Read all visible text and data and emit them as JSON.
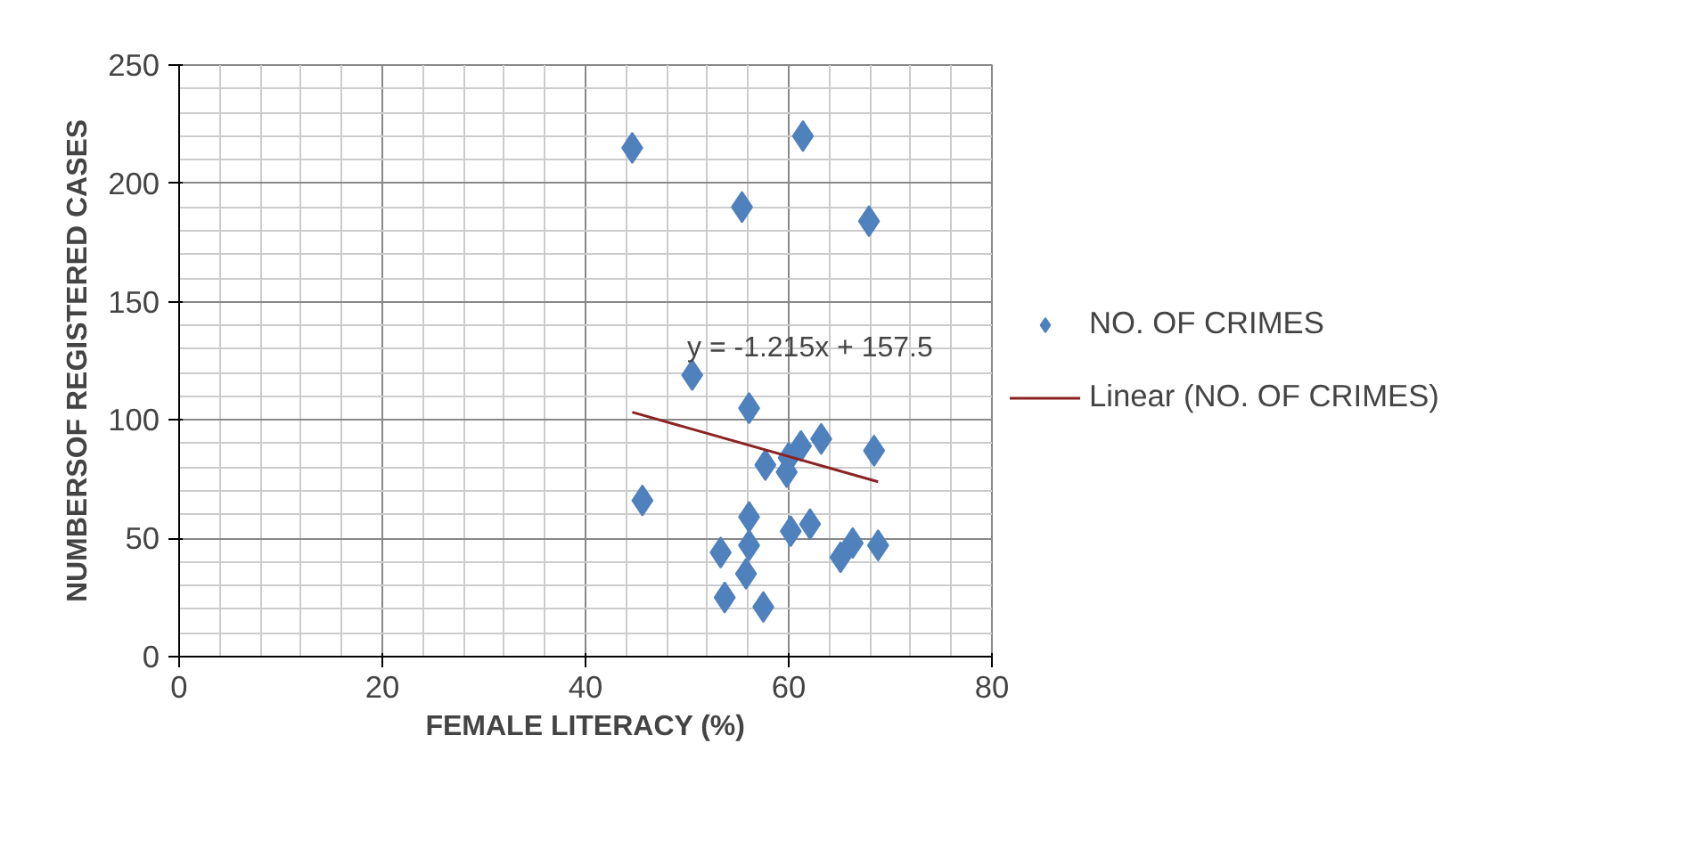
{
  "chart_data": {
    "type": "scatter",
    "xlabel": "FEMALE LITERACY (%)",
    "ylabel": "NUMBERSOF REGISTERED CASES",
    "xlim": [
      0,
      80
    ],
    "xticks": [
      0,
      20,
      40,
      60,
      80
    ],
    "ylim": [
      0,
      250
    ],
    "yticks": [
      0,
      50,
      100,
      150,
      200,
      250
    ],
    "grid": true,
    "legend": "right",
    "annotations": [
      {
        "text": "y = -1.215x + 157.5",
        "x": 50,
        "y": 124
      }
    ],
    "series": [
      {
        "name": "NO. OF CRIMES",
        "color": "#4f81bd",
        "marker": "diamond",
        "x": [
          44.6,
          55.4,
          61.4,
          67.9,
          50.5,
          56.1,
          45.6,
          57.7,
          59.8,
          60,
          61.2,
          63.2,
          68.4,
          56.1,
          53.3,
          56.1,
          60.2,
          62.1,
          65.1,
          66.3,
          68.8,
          55.8,
          53.7,
          57.5
        ],
        "values": [
          215,
          190,
          220,
          184,
          119,
          105,
          66,
          81,
          78,
          84,
          89,
          92,
          87,
          59,
          44,
          47,
          53,
          56,
          42,
          48,
          47,
          35,
          25,
          21
        ]
      },
      {
        "name": "Linear (NO. OF CRIMES)",
        "color": "#8b2323",
        "type": "line",
        "line_style": "solid",
        "x": [
          44.6,
          68.8
        ],
        "values": [
          103.3,
          73.9
        ]
      }
    ]
  }
}
